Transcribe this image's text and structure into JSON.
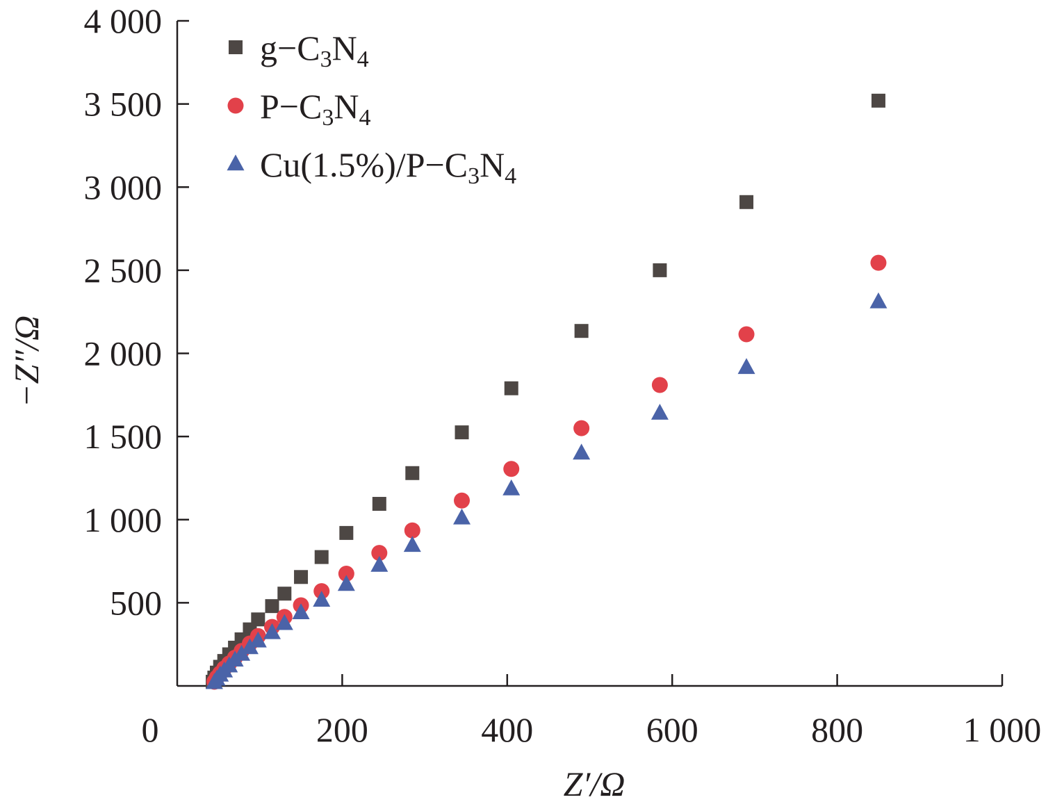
{
  "chart_data": {
    "type": "scatter",
    "title": "",
    "xlabel": "Z′/Ω",
    "ylabel": "−Z″/Ω",
    "xlim": [
      0,
      1000
    ],
    "ylim": [
      0,
      4000
    ],
    "x_ticks": [
      200,
      400,
      600,
      800,
      1000
    ],
    "x_tick_labels": [
      "200",
      "400",
      "600",
      "800",
      "1 000"
    ],
    "x_origin_label": "0",
    "y_ticks": [
      500,
      1000,
      1500,
      2000,
      2500,
      3000,
      3500,
      4000
    ],
    "y_tick_labels": [
      "500",
      "1 000",
      "1 500",
      "2 000",
      "2 500",
      "3 000",
      "3 500",
      "4 000"
    ],
    "grid": false,
    "legend_position": "top-left",
    "series": [
      {
        "name": "g−C3N4",
        "label_main": "g−C",
        "label_sub1": "3",
        "label_mid": "N",
        "label_sub2": "4",
        "marker": "square",
        "color": "#4d4744",
        "points": [
          [
            850,
            3520
          ],
          [
            690,
            2910
          ],
          [
            585,
            2500
          ],
          [
            490,
            2135
          ],
          [
            405,
            1790
          ],
          [
            345,
            1525
          ],
          [
            285,
            1280
          ],
          [
            245,
            1095
          ],
          [
            205,
            920
          ],
          [
            175,
            775
          ],
          [
            150,
            655
          ],
          [
            130,
            555
          ],
          [
            115,
            480
          ],
          [
            98,
            400
          ],
          [
            88,
            340
          ],
          [
            78,
            280
          ],
          [
            70,
            230
          ],
          [
            63,
            190
          ],
          [
            57,
            150
          ],
          [
            52,
            115
          ],
          [
            48,
            80
          ],
          [
            45,
            50
          ],
          [
            43,
            25
          ]
        ]
      },
      {
        "name": "P−C3N4",
        "label_main": "P−C",
        "label_sub1": "3",
        "label_mid": "N",
        "label_sub2": "4",
        "marker": "circle",
        "color": "#e2414a",
        "points": [
          [
            850,
            2545
          ],
          [
            690,
            2115
          ],
          [
            585,
            1810
          ],
          [
            490,
            1550
          ],
          [
            405,
            1305
          ],
          [
            345,
            1115
          ],
          [
            285,
            935
          ],
          [
            245,
            800
          ],
          [
            205,
            675
          ],
          [
            175,
            570
          ],
          [
            150,
            485
          ],
          [
            130,
            415
          ],
          [
            115,
            355
          ],
          [
            98,
            300
          ],
          [
            88,
            255
          ],
          [
            78,
            210
          ],
          [
            70,
            170
          ],
          [
            63,
            135
          ],
          [
            57,
            105
          ],
          [
            52,
            75
          ],
          [
            48,
            50
          ],
          [
            45,
            25
          ]
        ]
      },
      {
        "name": "Cu(1.5%)/P−C3N4",
        "label_main": "Cu(1.5%)/P−C",
        "label_sub1": "3",
        "label_mid": "N",
        "label_sub2": "4",
        "marker": "triangle",
        "color": "#4a63a8",
        "points": [
          [
            850,
            2310
          ],
          [
            690,
            1915
          ],
          [
            585,
            1640
          ],
          [
            490,
            1400
          ],
          [
            405,
            1185
          ],
          [
            345,
            1010
          ],
          [
            285,
            845
          ],
          [
            245,
            725
          ],
          [
            205,
            610
          ],
          [
            175,
            515
          ],
          [
            150,
            440
          ],
          [
            130,
            375
          ],
          [
            115,
            320
          ],
          [
            98,
            270
          ],
          [
            88,
            230
          ],
          [
            78,
            190
          ],
          [
            70,
            155
          ],
          [
            63,
            120
          ],
          [
            57,
            90
          ],
          [
            52,
            65
          ],
          [
            48,
            40
          ],
          [
            45,
            20
          ]
        ]
      }
    ]
  }
}
